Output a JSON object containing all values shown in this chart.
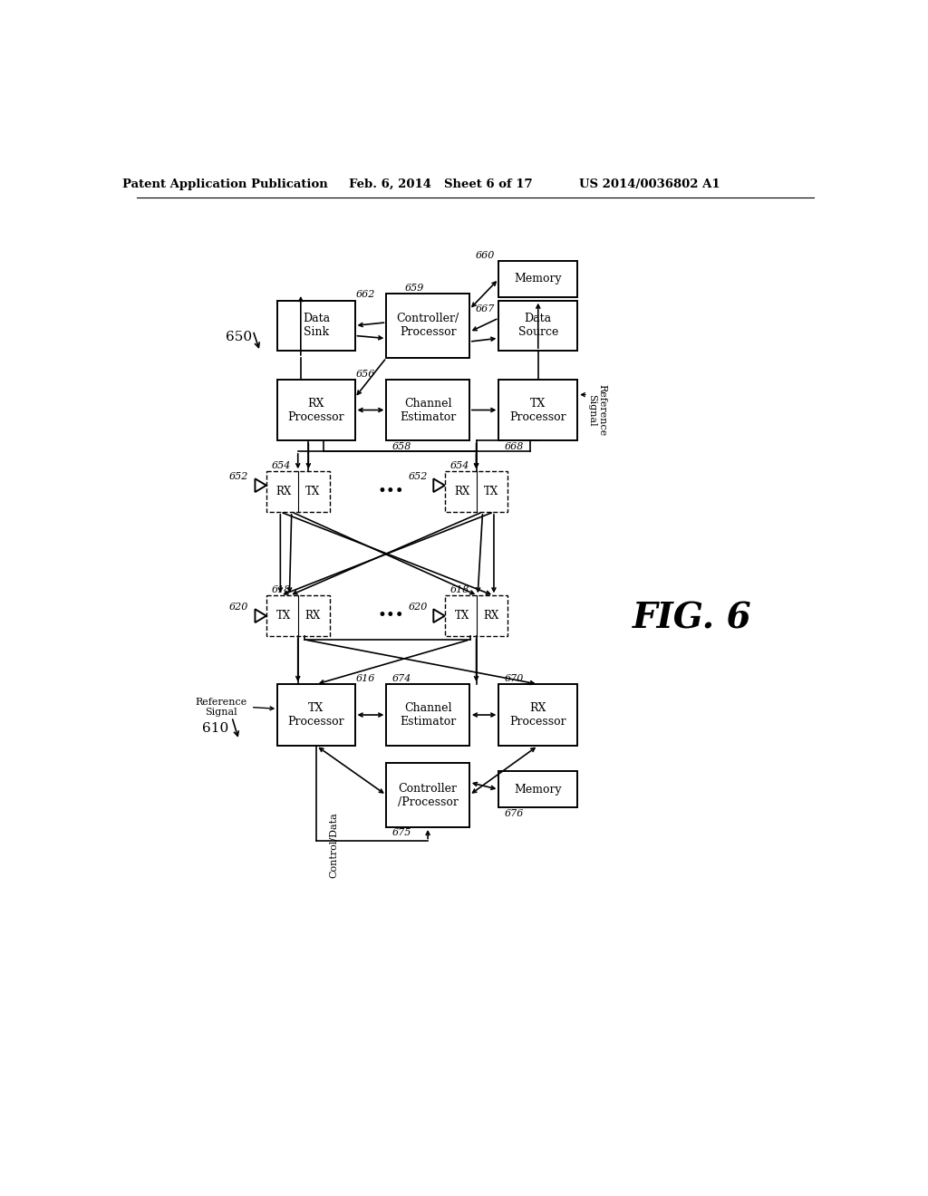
{
  "bg_color": "#ffffff",
  "header_left": "Patent Application Publication",
  "header_date": "Feb. 6, 2014",
  "header_sheet": "Sheet 6 of 17",
  "header_patent": "US 2014/0036802 A1",
  "fig_label": "FIG. 6",
  "upper_label": "650",
  "lower_label": "610"
}
